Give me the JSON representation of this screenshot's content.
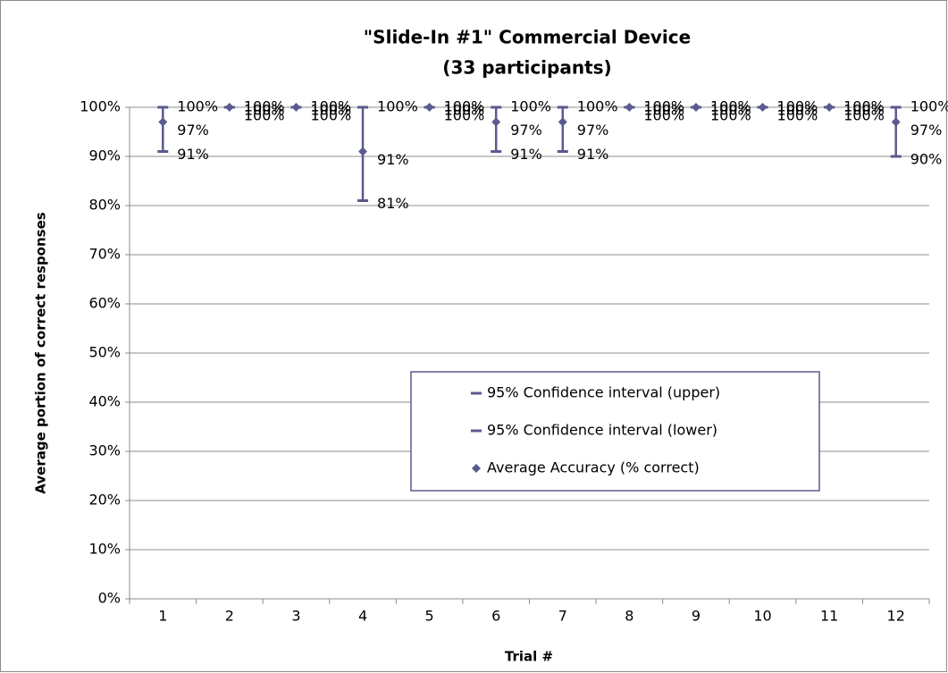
{
  "chart_data": {
    "type": "hilo",
    "title": "\"Slide-In #1\" Commercial Device",
    "subtitle": "(33 participants)",
    "x_label": "Trial #",
    "y_label": "Average portion of correct responses",
    "categories": [
      "1",
      "2",
      "3",
      "4",
      "5",
      "6",
      "7",
      "8",
      "9",
      "10",
      "11",
      "12"
    ],
    "series": [
      {
        "name": "95% Confidence interval (upper)",
        "color": "#5a5a8e",
        "marker": "dash",
        "values": [
          100,
          100,
          100,
          100,
          100,
          100,
          100,
          100,
          100,
          100,
          100,
          100
        ],
        "value_labels": [
          "100%",
          "100%",
          "100%",
          "100%",
          "100%",
          "100%",
          "100%",
          "100%",
          "100%",
          "100%",
          "100%",
          "100%"
        ]
      },
      {
        "name": "95% Confidence interval (lower)",
        "color": "#5a5a8e",
        "marker": "dash",
        "values": [
          91,
          100,
          100,
          81,
          100,
          91,
          91,
          100,
          100,
          100,
          100,
          90
        ],
        "value_labels": [
          "91%",
          "100%",
          "100%",
          "81%",
          "100%",
          "91%",
          "91%",
          "100%",
          "100%",
          "100%",
          "100%",
          "90%"
        ]
      },
      {
        "name": "Average Accuracy (% correct)",
        "color": "#5a5a8e",
        "marker": "diamond",
        "values": [
          97,
          100,
          100,
          91,
          100,
          97,
          97,
          100,
          100,
          100,
          100,
          97
        ],
        "value_labels": [
          "97%",
          "100%",
          "100%",
          "91%",
          "100%",
          "97%",
          "97%",
          "100%",
          "100%",
          "100%",
          "100%",
          "97%"
        ]
      }
    ],
    "ylim": [
      0,
      100
    ],
    "yticks": [
      {
        "value": 0,
        "label": "0%"
      },
      {
        "value": 10,
        "label": "10%"
      },
      {
        "value": 20,
        "label": "20%"
      },
      {
        "value": 30,
        "label": "30%"
      },
      {
        "value": 40,
        "label": "40%"
      },
      {
        "value": 50,
        "label": "50%"
      },
      {
        "value": 60,
        "label": "60%"
      },
      {
        "value": 70,
        "label": "70%"
      },
      {
        "value": 80,
        "label": "80%"
      },
      {
        "value": 90,
        "label": "90%"
      },
      {
        "value": 100,
        "label": "100%"
      }
    ],
    "grid": true
  }
}
